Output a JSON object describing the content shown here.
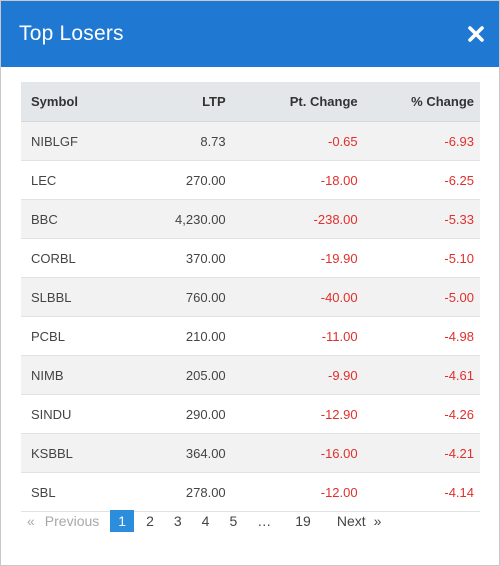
{
  "modal": {
    "title": "Top Losers",
    "close_icon": "close-icon"
  },
  "table": {
    "headers": {
      "symbol": "Symbol",
      "ltp": "LTP",
      "pt_change": "Pt. Change",
      "pct_change": "% Change"
    },
    "rows": [
      {
        "symbol": "NIBLGF",
        "ltp": "8.73",
        "pt_change": "-0.65",
        "pct_change": "-6.93"
      },
      {
        "symbol": "LEC",
        "ltp": "270.00",
        "pt_change": "-18.00",
        "pct_change": "-6.25"
      },
      {
        "symbol": "BBC",
        "ltp": "4,230.00",
        "pt_change": "-238.00",
        "pct_change": "-5.33"
      },
      {
        "symbol": "CORBL",
        "ltp": "370.00",
        "pt_change": "-19.90",
        "pct_change": "-5.10"
      },
      {
        "symbol": "SLBBL",
        "ltp": "760.00",
        "pt_change": "-40.00",
        "pct_change": "-5.00"
      },
      {
        "symbol": "PCBL",
        "ltp": "210.00",
        "pt_change": "-11.00",
        "pct_change": "-4.98"
      },
      {
        "symbol": "NIMB",
        "ltp": "205.00",
        "pt_change": "-9.90",
        "pct_change": "-4.61"
      },
      {
        "symbol": "SINDU",
        "ltp": "290.00",
        "pt_change": "-12.90",
        "pct_change": "-4.26"
      },
      {
        "symbol": "KSBBL",
        "ltp": "364.00",
        "pt_change": "-16.00",
        "pct_change": "-4.21"
      },
      {
        "symbol": "SBL",
        "ltp": "278.00",
        "pt_change": "-12.00",
        "pct_change": "-4.14"
      }
    ]
  },
  "pagination": {
    "prev_arrow": "«",
    "prev_label": "Previous",
    "pages": [
      "1",
      "2",
      "3",
      "4",
      "5"
    ],
    "active_page": "1",
    "ellipsis": "…",
    "last_page": "19",
    "next_label": "Next",
    "next_arrow": "»"
  },
  "colors": {
    "header_bg": "#1f78d1",
    "negative": "#e0302e",
    "active_page_bg": "#2b8ddb"
  }
}
